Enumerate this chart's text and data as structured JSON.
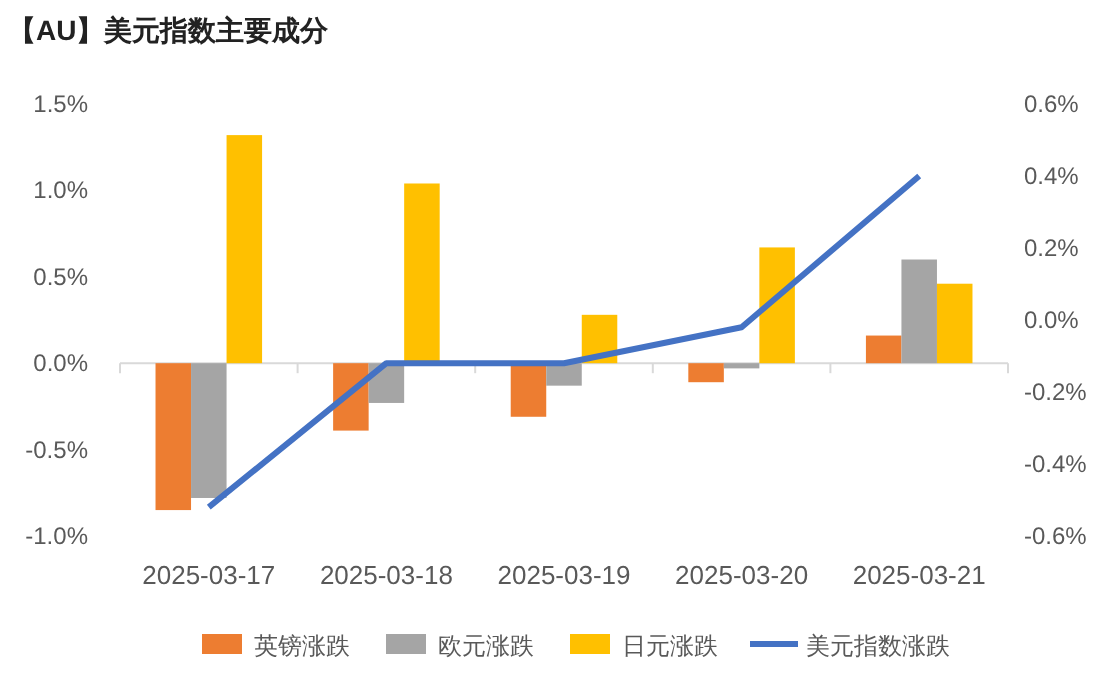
{
  "chart_data": {
    "type": "bar",
    "title": "【AU】美元指数主要成分",
    "categories": [
      "2025-03-17",
      "2025-03-18",
      "2025-03-19",
      "2025-03-20",
      "2025-03-21"
    ],
    "series": [
      {
        "name": "英镑涨跌",
        "color": "#ed7d31",
        "values": [
          -0.85,
          -0.39,
          -0.31,
          -0.11,
          0.16
        ]
      },
      {
        "name": "欧元涨跌",
        "color": "#a5a5a5",
        "values": [
          -0.78,
          -0.23,
          -0.13,
          -0.03,
          0.6
        ]
      },
      {
        "name": "日元涨跌",
        "color": "#ffc000",
        "values": [
          1.32,
          1.04,
          0.28,
          0.67,
          0.46
        ]
      },
      {
        "name": "美元指数涨跌",
        "color": "#4472c4",
        "type": "line",
        "axis": "y2",
        "values": [
          -0.52,
          -0.12,
          -0.12,
          -0.02,
          0.4
        ]
      }
    ],
    "ylim": [
      -1.0,
      1.5
    ],
    "yticks": [
      {
        "value": -1.0,
        "label": "-1.0%"
      },
      {
        "value": -0.5,
        "label": "-0.5%"
      },
      {
        "value": 0,
        "label": "0.0%"
      },
      {
        "value": 0.5,
        "label": "0.5%"
      },
      {
        "value": 1.0,
        "label": "1.0%"
      },
      {
        "value": 1.5,
        "label": "1.5%"
      }
    ],
    "y2lim": [
      -0.6,
      0.6
    ],
    "y2ticks": [
      {
        "value": -0.6,
        "label": "-0.6%"
      },
      {
        "value": -0.4,
        "label": "-0.4%"
      },
      {
        "value": -0.2,
        "label": "-0.2%"
      },
      {
        "value": 0,
        "label": "0.0%"
      },
      {
        "value": 0.2,
        "label": "0.2%"
      },
      {
        "value": 0.4,
        "label": "0.4%"
      },
      {
        "value": 0.6,
        "label": "0.6%"
      }
    ],
    "legend": "bottom",
    "marker": "none",
    "line_style": "solid"
  }
}
